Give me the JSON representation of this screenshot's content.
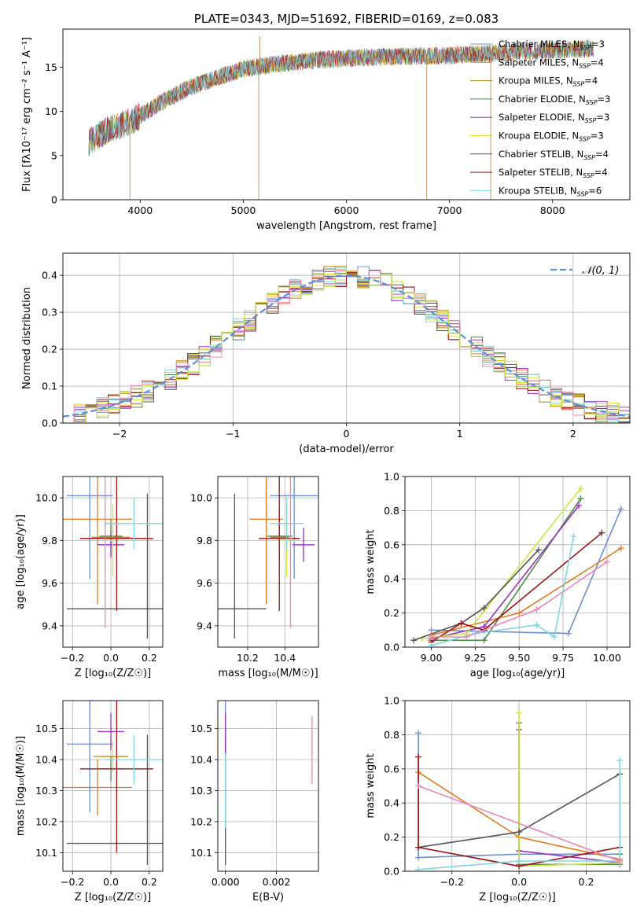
{
  "palette": [
    "#6b8fd6",
    "#e07b20",
    "#b8860b",
    "#4a8a4a",
    "#9b30c0",
    "#d8e030",
    "#555555",
    "#a01010",
    "#7fd8e0",
    "#e888b8",
    "#c8e840"
  ],
  "chart_data": [
    {
      "id": "spectrum",
      "type": "line",
      "title": "PLATE=0343, MJD=51692, FIBERID=0169, z=0.083",
      "xlabel": "wavelength [Angstrom, rest frame]",
      "ylabel": "Flux [fλ10⁻¹⁷ erg cm⁻² s⁻¹ A⁻¹]",
      "xlim": [
        3250,
        8750
      ],
      "ylim": [
        0,
        19.3
      ],
      "xticks": [
        "4000",
        "5000",
        "6000",
        "7000",
        "8000"
      ],
      "yticks": [
        "0",
        "5",
        "10",
        "15"
      ],
      "grid": false,
      "legend_position": "right",
      "series": [
        {
          "name": "Chabrier MILES, N_SSP=3"
        },
        {
          "name": "Salpeter MILES, N_SSP=4"
        },
        {
          "name": "Kroupa MILES, N_SSP=4"
        },
        {
          "name": "Chabrier ELODIE, N_SSP=3"
        },
        {
          "name": "Salpeter ELODIE, N_SSP=3"
        },
        {
          "name": "Kroupa ELODIE, N_SSP=3"
        },
        {
          "name": "Chabrier STELIB, N_SSP=4"
        },
        {
          "name": "Salpeter STELIB, N_SSP=4"
        },
        {
          "name": "Kroupa STELIB, N_SSP=6"
        }
      ],
      "continuum": [
        [
          3500,
          6.5
        ],
        [
          3700,
          8.0
        ],
        [
          3900,
          8.8
        ],
        [
          4000,
          9.5
        ],
        [
          4200,
          11.0
        ],
        [
          4500,
          12.8
        ],
        [
          4800,
          14.0
        ],
        [
          5000,
          14.8
        ],
        [
          5300,
          15.3
        ],
        [
          5700,
          15.8
        ],
        [
          6000,
          16.0
        ],
        [
          6500,
          16.2
        ],
        [
          7000,
          16.3
        ],
        [
          7500,
          16.6
        ],
        [
          8000,
          16.9
        ],
        [
          8400,
          17.1
        ]
      ],
      "spikes": [
        [
          3900,
          0
        ],
        [
          5150,
          0
        ],
        [
          5160,
          18.5
        ],
        [
          6780,
          0
        ],
        [
          7400,
          0
        ]
      ]
    },
    {
      "id": "residuals",
      "type": "bar",
      "xlabel": "(data-model)/error",
      "ylabel": "Normed distribution",
      "xlim": [
        -2.5,
        2.5
      ],
      "ylim": [
        0,
        0.46
      ],
      "xticks": [
        "−2",
        "−1",
        "0",
        "1",
        "2"
      ],
      "yticks": [
        "0.0",
        "0.1",
        "0.2",
        "0.3",
        "0.4"
      ],
      "grid": true,
      "legend": [
        "𝒩(0, 1)"
      ],
      "legend_position": "top-right",
      "bin_width": 0.1,
      "bin_start": -2.5
    },
    {
      "id": "age-vs-Z",
      "type": "scatter",
      "xlabel": "Z [log₁₀(Z/Z☉)]",
      "ylabel": "age  [log₁₀(age/yr)]",
      "xlim": [
        -0.25,
        0.27
      ],
      "ylim": [
        9.3,
        10.1
      ],
      "xticks": [
        "−0.2",
        "0.0",
        "0.2"
      ],
      "yticks": [
        "9.4",
        "9.6",
        "9.8",
        "10.0"
      ],
      "grid": true,
      "points": [
        {
          "x": -0.11,
          "y": 10.01,
          "xerr": 0.12,
          "yerr": 0.39,
          "c": 0
        },
        {
          "x": -0.07,
          "y": 9.9,
          "xerr": 0.18,
          "yerr": 0.4,
          "c": 1
        },
        {
          "x": 0.0,
          "y": 9.82,
          "xerr": 0.06,
          "yerr": 0.08,
          "c": 3
        },
        {
          "x": 0.0,
          "y": 9.78,
          "xerr": 0.07,
          "yerr": 0.06,
          "c": 4
        },
        {
          "x": 0.01,
          "y": 9.8,
          "xerr": 0.05,
          "yerr": 0.17,
          "c": 5
        },
        {
          "x": 0.05,
          "y": 9.48,
          "xerr": 0.28,
          "yerr": 0.0,
          "c": 6
        },
        {
          "x": 0.19,
          "y": 9.68,
          "xerr": 0.0,
          "yerr": 0.34,
          "c": 6
        },
        {
          "x": 0.03,
          "y": 9.81,
          "xerr": 0.19,
          "yerr": 0.34,
          "c": 7
        },
        {
          "x": 0.12,
          "y": 9.88,
          "xerr": 0.15,
          "yerr": 0.12,
          "c": 8
        },
        {
          "x": -0.03,
          "y": 9.8,
          "xerr": 0.0,
          "yerr": 0.41,
          "c": 9
        },
        {
          "x": 0.0,
          "y": 9.815,
          "xerr": 0.1,
          "yerr": 0.0,
          "c": 2
        }
      ]
    },
    {
      "id": "age-vs-mass",
      "type": "scatter",
      "xlabel": "mass [log₁₀(M/M☉)]",
      "ylabel": "",
      "xlim": [
        10.04,
        10.58
      ],
      "ylim": [
        9.3,
        10.1
      ],
      "xticks": [
        "10.2",
        "10.4"
      ],
      "yticks": [
        "9.4",
        "9.6",
        "9.8",
        "10.0"
      ],
      "grid": true,
      "points": [
        {
          "x": 10.45,
          "y": 10.01,
          "xerr": 0.13,
          "yerr": 0.39,
          "c": 0
        },
        {
          "x": 10.3,
          "y": 9.9,
          "xerr": 0.09,
          "yerr": 0.4,
          "c": 1
        },
        {
          "x": 10.37,
          "y": 9.82,
          "xerr": 0.07,
          "yerr": 0.12,
          "c": 3
        },
        {
          "x": 10.5,
          "y": 9.78,
          "xerr": 0.06,
          "yerr": 0.08,
          "c": 4
        },
        {
          "x": 10.41,
          "y": 9.8,
          "xerr": 0.05,
          "yerr": 0.17,
          "c": 5
        },
        {
          "x": 10.13,
          "y": 9.48,
          "xerr": 0.17,
          "yerr": 0.0,
          "c": 6
        },
        {
          "x": 10.13,
          "y": 9.68,
          "xerr": 0.0,
          "yerr": 0.34,
          "c": 6
        },
        {
          "x": 10.37,
          "y": 9.81,
          "xerr": 0.11,
          "yerr": 0.34,
          "c": 7
        },
        {
          "x": 10.41,
          "y": 9.88,
          "xerr": 0.09,
          "yerr": 0.12,
          "c": 8
        },
        {
          "x": 10.43,
          "y": 9.8,
          "xerr": 0.0,
          "yerr": 0.41,
          "c": 9
        },
        {
          "x": 10.37,
          "y": 9.815,
          "xerr": 0.05,
          "yerr": 0.0,
          "c": 2
        }
      ]
    },
    {
      "id": "weight-vs-age",
      "type": "line",
      "xlabel": "age  [log₁₀(age/yr)]",
      "ylabel": "mass weight",
      "xlim": [
        8.85,
        10.13
      ],
      "ylim": [
        0,
        1.0
      ],
      "xticks": [
        "9.00",
        "9.25",
        "9.50",
        "9.75",
        "10.00"
      ],
      "yticks": [
        "0.0",
        "0.2",
        "0.4",
        "0.6",
        "0.8",
        "1.0"
      ],
      "grid": true,
      "series": [
        {
          "c": 0,
          "x": [
            9.0,
            9.78,
            10.08
          ],
          "y": [
            0.1,
            0.08,
            0.81
          ]
        },
        {
          "c": 1,
          "x": [
            9.0,
            9.5,
            10.08
          ],
          "y": [
            0.07,
            0.2,
            0.58
          ]
        },
        {
          "c": 3,
          "x": [
            9.0,
            9.3,
            9.85
          ],
          "y": [
            0.04,
            0.04,
            0.87
          ]
        },
        {
          "c": 4,
          "x": [
            9.0,
            9.3,
            9.84
          ],
          "y": [
            0.05,
            0.12,
            0.83
          ]
        },
        {
          "c": 10,
          "x": [
            8.95,
            9.2,
            9.85
          ],
          "y": [
            0.05,
            0.08,
            0.93
          ]
        },
        {
          "c": 6,
          "x": [
            8.9,
            9.17,
            9.3,
            9.61
          ],
          "y": [
            0.04,
            0.14,
            0.23,
            0.57
          ]
        },
        {
          "c": 7,
          "x": [
            9.0,
            9.17,
            9.3,
            9.97
          ],
          "y": [
            0.03,
            0.14,
            0.1,
            0.67
          ]
        },
        {
          "c": 8,
          "x": [
            9.0,
            9.25,
            9.6,
            9.7,
            9.81
          ],
          "y": [
            0.01,
            0.08,
            0.13,
            0.06,
            0.65
          ]
        },
        {
          "c": 9,
          "x": [
            9.0,
            9.2,
            9.6,
            10.0
          ],
          "y": [
            0.06,
            0.06,
            0.22,
            0.5
          ]
        }
      ]
    },
    {
      "id": "mass-vs-Z",
      "type": "scatter",
      "xlabel": "Z [log₁₀(Z/Z☉)]",
      "ylabel": "mass [log₁₀(M/M☉)]",
      "xlim": [
        -0.25,
        0.27
      ],
      "ylim": [
        10.04,
        10.59
      ],
      "xticks": [
        "−0.2",
        "0.0",
        "0.2"
      ],
      "yticks": [
        "10.1",
        "10.2",
        "10.3",
        "10.4",
        "10.5"
      ],
      "grid": true,
      "points": [
        {
          "x": -0.11,
          "y": 10.45,
          "xerr": 0.12,
          "yerr": 0.22,
          "c": 0
        },
        {
          "x": -0.07,
          "y": 10.31,
          "xerr": 0.18,
          "yerr": 0.09,
          "c": 1
        },
        {
          "x": 0.0,
          "y": 10.37,
          "xerr": 0.06,
          "yerr": 0.04,
          "c": 3
        },
        {
          "x": 0.0,
          "y": 10.49,
          "xerr": 0.07,
          "yerr": 0.06,
          "c": 4
        },
        {
          "x": 0.01,
          "y": 10.41,
          "xerr": 0.05,
          "yerr": 0.05,
          "c": 5
        },
        {
          "x": 0.05,
          "y": 10.13,
          "xerr": 0.28,
          "yerr": 0.0,
          "c": 6
        },
        {
          "x": 0.19,
          "y": 10.27,
          "xerr": 0.0,
          "yerr": 0.21,
          "c": 6
        },
        {
          "x": 0.03,
          "y": 10.37,
          "xerr": 0.19,
          "yerr": 0.27,
          "c": 7
        },
        {
          "x": 0.12,
          "y": 10.4,
          "xerr": 0.15,
          "yerr": 0.08,
          "c": 8
        },
        {
          "x": -0.03,
          "y": 10.41,
          "xerr": 0.0,
          "yerr": 0.0,
          "c": 9
        },
        {
          "x": 0.0,
          "y": 10.41,
          "xerr": 0.09,
          "yerr": 0.0,
          "c": 2
        }
      ]
    },
    {
      "id": "mass-vs-ebv",
      "type": "scatter",
      "xlabel": "E(B-V)",
      "ylabel": "",
      "xlim": [
        -0.0003,
        0.00365
      ],
      "ylim": [
        10.04,
        10.59
      ],
      "xticks": [
        "0.000",
        "0.002"
      ],
      "yticks": [
        "10.1",
        "10.2",
        "10.3",
        "10.4",
        "10.5"
      ],
      "grid": true,
      "points": [
        {
          "x": 0.0,
          "y": 10.45,
          "xerr": 0,
          "yerr": 0.22,
          "c": 0
        },
        {
          "x": 0.0,
          "y": 10.28,
          "xerr": 0,
          "yerr": 0.22,
          "c": 6
        },
        {
          "x": 0.0,
          "y": 10.4,
          "xerr": 0,
          "yerr": 0.15,
          "c": 4
        },
        {
          "x": 0.0,
          "y": 10.3,
          "xerr": 0,
          "yerr": 0.12,
          "c": 8
        },
        {
          "x": 0.0034,
          "y": 10.43,
          "xerr": 0,
          "yerr": 0.11,
          "c": 9
        }
      ]
    },
    {
      "id": "weight-vs-Z",
      "type": "line",
      "xlabel": "Z [log₁₀(Z/Z☉)]",
      "ylabel": "mass weight",
      "xlim": [
        -0.34,
        0.33
      ],
      "ylim": [
        0,
        1.0
      ],
      "xticks": [
        "−0.2",
        "0.0",
        "0.2"
      ],
      "yticks": [
        "0.0",
        "0.2",
        "0.4",
        "0.6",
        "0.8",
        "1.0"
      ],
      "grid": true,
      "series": [
        {
          "c": 0,
          "x": [
            -0.3,
            -0.3,
            0.0,
            0.3
          ],
          "y": [
            0.81,
            0.08,
            0.1,
            0.1
          ]
        },
        {
          "c": 1,
          "x": [
            -0.3,
            0.0,
            0.3
          ],
          "y": [
            0.58,
            0.2,
            0.07
          ]
        },
        {
          "c": 3,
          "x": [
            0.0,
            0.0,
            0.3,
            0.3
          ],
          "y": [
            0.87,
            0.04,
            0.04,
            0.1
          ]
        },
        {
          "c": 4,
          "x": [
            0.0,
            0.0,
            0.3
          ],
          "y": [
            0.83,
            0.12,
            0.05
          ]
        },
        {
          "c": 10,
          "x": [
            0.0,
            0.0,
            0.3
          ],
          "y": [
            0.93,
            0.03,
            0.05
          ]
        },
        {
          "c": 6,
          "x": [
            -0.3,
            0.0,
            0.3
          ],
          "y": [
            0.14,
            0.23,
            0.57
          ]
        },
        {
          "c": 7,
          "x": [
            -0.3,
            -0.3,
            0.0,
            0.3
          ],
          "y": [
            0.67,
            0.14,
            0.03,
            0.14
          ]
        },
        {
          "c": 8,
          "x": [
            -0.3,
            0.0,
            0.3,
            0.3
          ],
          "y": [
            0.01,
            0.06,
            0.06,
            0.65
          ]
        },
        {
          "c": 9,
          "x": [
            -0.3,
            0.3
          ],
          "y": [
            0.5,
            0.06
          ]
        }
      ]
    }
  ]
}
